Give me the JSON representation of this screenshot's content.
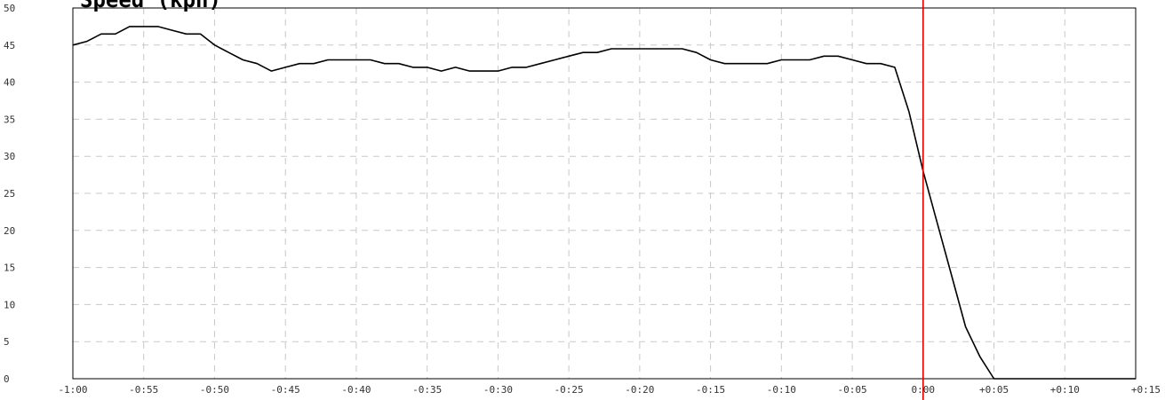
{
  "chart_data": {
    "type": "line",
    "title": "Speed (kph)",
    "xlabel": "",
    "ylabel": "",
    "xlim": [
      -60,
      15
    ],
    "ylim": [
      0,
      50
    ],
    "grid": true,
    "x_ticks": [
      -60,
      -55,
      -50,
      -45,
      -40,
      -35,
      -30,
      -25,
      -20,
      -15,
      -10,
      -5,
      0,
      5,
      10,
      15
    ],
    "x_tick_labels": [
      "-1:00",
      "-0:55",
      "-0:50",
      "-0:45",
      "-0:40",
      "-0:35",
      "-0:30",
      "-0:25",
      "-0:20",
      "-0:15",
      "-0:10",
      "-0:05",
      "0:00",
      "+0:05",
      "+0:10",
      "+0:15"
    ],
    "y_ticks": [
      0,
      5,
      10,
      15,
      20,
      25,
      30,
      35,
      40,
      45,
      50
    ],
    "y_tick_labels": [
      "0",
      "5",
      "10",
      "15",
      "20",
      "25",
      "30",
      "35",
      "40",
      "45",
      "50"
    ],
    "marker": {
      "x": 0,
      "color": "#e00000"
    },
    "series": [
      {
        "color": "#000000",
        "x": [
          -60,
          -59,
          -58,
          -57,
          -56,
          -55,
          -54,
          -53,
          -52,
          -51,
          -50,
          -49,
          -48,
          -47,
          -46,
          -45,
          -44,
          -43,
          -42,
          -41,
          -40,
          -39,
          -38,
          -37,
          -36,
          -35,
          -34,
          -33,
          -32,
          -31,
          -30,
          -29,
          -28,
          -27,
          -26,
          -25,
          -24,
          -23,
          -22,
          -21,
          -20,
          -19,
          -18,
          -17,
          -16,
          -15,
          -14,
          -13,
          -12,
          -11,
          -10,
          -9,
          -8,
          -7,
          -6,
          -5,
          -4,
          -3,
          -2,
          -1,
          0,
          1,
          2,
          3,
          4,
          5,
          6,
          7,
          8,
          9,
          10,
          11,
          12,
          13,
          14,
          15
        ],
        "values": [
          45,
          45.5,
          46.5,
          46.5,
          47.5,
          47.5,
          47.5,
          47,
          46.5,
          46.5,
          45,
          44,
          43,
          42.5,
          41.5,
          42,
          42.5,
          42.5,
          43,
          43,
          43,
          43,
          42.5,
          42.5,
          42,
          42,
          41.5,
          42,
          41.5,
          41.5,
          41.5,
          42,
          42,
          42.5,
          43,
          43.5,
          44,
          44,
          44.5,
          44.5,
          44.5,
          44.5,
          44.5,
          44.5,
          44,
          43,
          42.5,
          42.5,
          42.5,
          42.5,
          43,
          43,
          43,
          43.5,
          43.5,
          43,
          42.5,
          42.5,
          42,
          36,
          28,
          21,
          14,
          7,
          3,
          0,
          0,
          0,
          0,
          0,
          0,
          0,
          0,
          0,
          0,
          0
        ]
      }
    ]
  }
}
